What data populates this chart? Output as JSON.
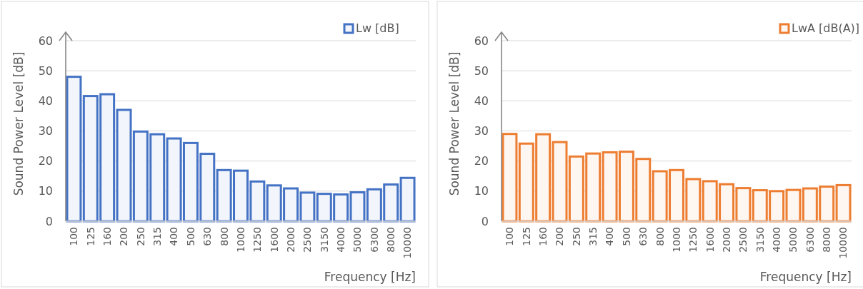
{
  "chart_data": [
    {
      "type": "bar",
      "xlabel": "Frequency [Hz]",
      "ylabel": "Sound Power Level [dB]",
      "categories": [
        "100",
        "125",
        "160",
        "200",
        "250",
        "315",
        "400",
        "500",
        "630",
        "800",
        "1000",
        "1250",
        "1600",
        "2000",
        "2500",
        "3150",
        "4000",
        "5000",
        "6300",
        "8000",
        "10000"
      ],
      "series": [
        {
          "name": "Lw [dB]",
          "color": "#4472c4",
          "values": [
            48,
            41.6,
            42.2,
            37,
            29.8,
            28.9,
            27.5,
            26,
            22.4,
            17,
            16.8,
            13.2,
            11.9,
            10.9,
            9.5,
            9.1,
            8.9,
            9.6,
            10.6,
            12.2,
            14.4
          ]
        }
      ],
      "ylim": [
        0,
        60
      ],
      "yticks": [
        0,
        10,
        20,
        30,
        40,
        50,
        60
      ],
      "grid": "y",
      "legend": "top right"
    },
    {
      "type": "bar",
      "xlabel": "Frequency [Hz]",
      "ylabel": "Sound Power Level [dB]",
      "categories": [
        "100",
        "125",
        "160",
        "200",
        "250",
        "315",
        "400",
        "500",
        "630",
        "800",
        "1000",
        "1250",
        "1600",
        "2000",
        "2500",
        "3150",
        "4000",
        "5000",
        "6300",
        "8000",
        "10000"
      ],
      "series": [
        {
          "name": "LwA [dB(A)]",
          "color": "#ed7d31",
          "values": [
            29,
            25.8,
            28.9,
            26.3,
            21.5,
            22.5,
            22.9,
            23.1,
            20.7,
            16.6,
            17,
            14,
            13.3,
            12.3,
            11,
            10.3,
            10,
            10.4,
            10.9,
            11.5,
            12
          ]
        }
      ],
      "ylim": [
        0,
        60
      ],
      "yticks": [
        0,
        10,
        20,
        30,
        40,
        50,
        60
      ],
      "grid": "y",
      "legend": "top right"
    }
  ]
}
